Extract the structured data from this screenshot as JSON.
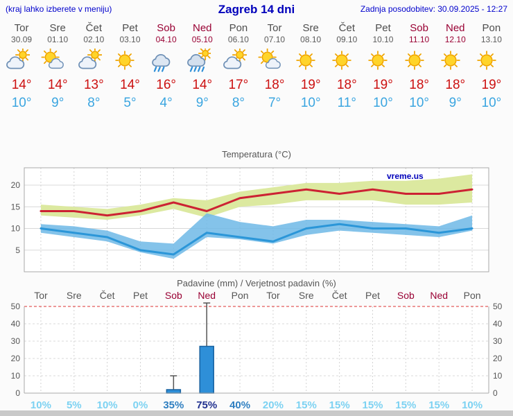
{
  "header": {
    "left_note": "(kraj lahko izberete v meniju)",
    "title": "Zagreb 14 dni",
    "last_update": "Zadnja posodobitev: 30.09.2025 - 12:27"
  },
  "colors": {
    "header_blue": "#0000bb",
    "weekday_label": "#4d4d4d",
    "weekend_label": "#990033",
    "temp_high": "#cc1111",
    "temp_low": "#3aa5e0",
    "max_band": "#dce9a0",
    "min_band": "#6fb9e6",
    "max_line": "#cc2233",
    "min_line": "#2b96d8",
    "bar_fill": "#2e8fd8"
  },
  "days": [
    {
      "name": "Tor",
      "date": "30.09",
      "weekend": false,
      "icon": "cloud-sun",
      "high": "14°",
      "low": "10°"
    },
    {
      "name": "Sre",
      "date": "01.10",
      "weekend": false,
      "icon": "sun-cloud",
      "high": "14°",
      "low": "9°"
    },
    {
      "name": "Čet",
      "date": "02.10",
      "weekend": false,
      "icon": "cloud-sun",
      "high": "13°",
      "low": "8°"
    },
    {
      "name": "Pet",
      "date": "03.10",
      "weekend": false,
      "icon": "sunny",
      "high": "14°",
      "low": "5°"
    },
    {
      "name": "Sob",
      "date": "04.10",
      "weekend": true,
      "icon": "rain",
      "high": "16°",
      "low": "4°"
    },
    {
      "name": "Ned",
      "date": "05.10",
      "weekend": true,
      "icon": "rain-sun",
      "high": "14°",
      "low": "9°"
    },
    {
      "name": "Pon",
      "date": "06.10",
      "weekend": false,
      "icon": "cloud-sun",
      "high": "17°",
      "low": "8°"
    },
    {
      "name": "Tor",
      "date": "07.10",
      "weekend": false,
      "icon": "sun-cloud",
      "high": "18°",
      "low": "7°"
    },
    {
      "name": "Sre",
      "date": "08.10",
      "weekend": false,
      "icon": "sunny",
      "high": "19°",
      "low": "10°"
    },
    {
      "name": "Čet",
      "date": "09.10",
      "weekend": false,
      "icon": "sunny",
      "high": "18°",
      "low": "11°"
    },
    {
      "name": "Pet",
      "date": "10.10",
      "weekend": false,
      "icon": "sunny",
      "high": "19°",
      "low": "10°"
    },
    {
      "name": "Sob",
      "date": "11.10",
      "weekend": true,
      "icon": "sunny",
      "high": "18°",
      "low": "10°"
    },
    {
      "name": "Ned",
      "date": "12.10",
      "weekend": true,
      "icon": "sunny",
      "high": "18°",
      "low": "9°"
    },
    {
      "name": "Pon",
      "date": "13.10",
      "weekend": false,
      "icon": "sunny",
      "high": "19°",
      "low": "10°"
    }
  ],
  "chart_data": [
    {
      "type": "line",
      "title": "Temperatura (°C)",
      "watermark": "vreme.us",
      "categories": [
        "Tor",
        "Sre",
        "Čet",
        "Pet",
        "Sob",
        "Ned",
        "Pon",
        "Tor",
        "Sre",
        "Čet",
        "Pet",
        "Sob",
        "Ned",
        "Pon"
      ],
      "ylim": [
        0,
        24
      ],
      "yticks": [
        5,
        10,
        15,
        20
      ],
      "series": [
        {
          "name": "max",
          "values": [
            14,
            14,
            13,
            14,
            16,
            14,
            17,
            18,
            19,
            18,
            19,
            18,
            18,
            19
          ]
        },
        {
          "name": "min",
          "values": [
            10,
            9,
            8,
            5,
            4,
            9,
            8,
            7,
            10,
            11,
            10,
            10,
            9,
            10
          ]
        },
        {
          "name": "max_range_upper",
          "values": [
            15.5,
            15,
            14.5,
            15.5,
            17,
            16.5,
            18.5,
            19.5,
            20.5,
            20.5,
            21,
            21,
            21.5,
            22.5
          ]
        },
        {
          "name": "max_range_lower",
          "values": [
            13,
            12.5,
            12,
            13,
            14.5,
            12.5,
            15,
            15.5,
            16.5,
            16.5,
            16.5,
            15.5,
            15.5,
            16
          ]
        },
        {
          "name": "min_range_upper",
          "values": [
            11,
            10.5,
            9.5,
            7,
            6.5,
            13.5,
            11.5,
            10.5,
            12,
            12,
            11.5,
            11,
            10.5,
            13
          ]
        },
        {
          "name": "min_range_lower",
          "values": [
            9,
            8,
            7,
            4.5,
            3,
            8,
            7.5,
            6.5,
            8.5,
            9.5,
            9,
            8.5,
            8,
            9.5
          ]
        }
      ]
    },
    {
      "type": "bar",
      "title": "Padavine (mm) / Verjetnost padavin (%)",
      "categories": [
        "Tor",
        "Sre",
        "Čet",
        "Pet",
        "Sob",
        "Ned",
        "Pon",
        "Tor",
        "Sre",
        "Čet",
        "Pet",
        "Sob",
        "Ned",
        "Pon"
      ],
      "values": [
        0,
        0,
        0,
        0,
        2,
        27,
        0,
        0,
        0,
        0,
        0,
        0,
        0,
        0
      ],
      "whisker_max": [
        0,
        0,
        0,
        0,
        10,
        52,
        0,
        0,
        0,
        0,
        0,
        0,
        0,
        0
      ],
      "probabilities": [
        "10%",
        "5%",
        "10%",
        "0%",
        "35%",
        "75%",
        "40%",
        "20%",
        "15%",
        "15%",
        "15%",
        "15%",
        "15%",
        "10%"
      ],
      "ylim": [
        0,
        50
      ],
      "yticks": [
        0,
        10,
        20,
        30,
        40,
        50
      ]
    }
  ]
}
